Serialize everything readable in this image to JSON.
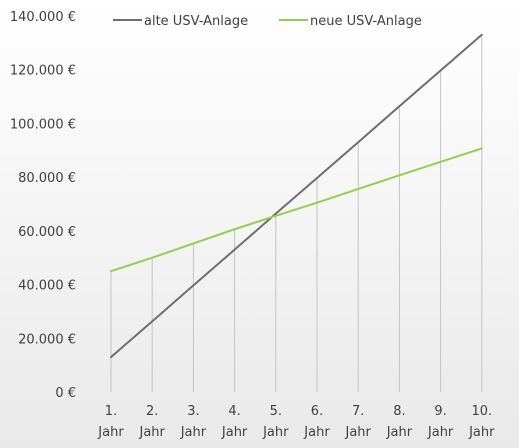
{
  "chart_data": {
    "type": "line",
    "categories": [
      "1. Jahr",
      "2. Jahr",
      "3. Jahr",
      "4. Jahr",
      "5. Jahr",
      "6. Jahr",
      "7. Jahr",
      "8. Jahr",
      "9. Jahr",
      "10. Jahr"
    ],
    "category_lines": [
      [
        "1.",
        "Jahr"
      ],
      [
        "2.",
        "Jahr"
      ],
      [
        "3.",
        "Jahr"
      ],
      [
        "4.",
        "Jahr"
      ],
      [
        "5.",
        "Jahr"
      ],
      [
        "6.",
        "Jahr"
      ],
      [
        "7.",
        "Jahr"
      ],
      [
        "8.",
        "Jahr"
      ],
      [
        "9.",
        "Jahr"
      ],
      [
        "10.",
        "Jahr"
      ]
    ],
    "series": [
      {
        "name": "alte USV-Anlage",
        "color": "#6e6e6e",
        "values": [
          13000,
          26300,
          39700,
          53000,
          66400,
          79700,
          93000,
          106400,
          119700,
          133000
        ]
      },
      {
        "name": "neue USV-Anlage",
        "color": "#8fd14f",
        "values": [
          45000,
          50000,
          55300,
          60600,
          65600,
          70500,
          75600,
          80700,
          85700,
          90700
        ]
      }
    ],
    "yticks": [
      "0 €",
      "20.000 €",
      "40.000 €",
      "60.000 €",
      "80.000 €",
      "100.000 €",
      "120.000 €",
      "140.000 €"
    ],
    "ylim": [
      0,
      140000
    ],
    "legend_position": "top",
    "drop_lines": true,
    "background": "light gray gradient"
  }
}
